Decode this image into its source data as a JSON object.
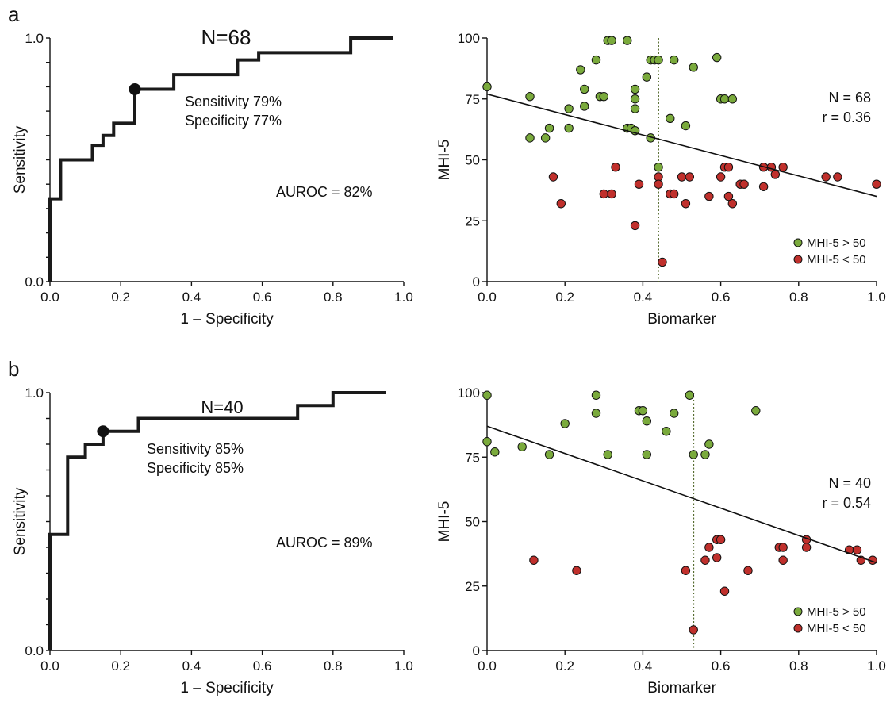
{
  "colors": {
    "green": "#7aaa3c",
    "red": "#c0302c",
    "line": "#111111",
    "cutoff": "#556b2f"
  },
  "panels": {
    "a": {
      "label": "a"
    },
    "b": {
      "label": "b"
    }
  },
  "chart_data": [
    {
      "id": "a-roc",
      "type": "line",
      "title": "N=68",
      "xlabel": "1 – Specificity",
      "ylabel": "Sensitivity",
      "xlim": [
        0,
        1
      ],
      "ylim": [
        0,
        1
      ],
      "xticks": [
        "0.0",
        "0.2",
        "0.4",
        "0.6",
        "0.8",
        "1.0"
      ],
      "yticks": [
        "0.0",
        "1.0"
      ],
      "x": [
        0,
        0,
        0.03,
        0.03,
        0.12,
        0.12,
        0.15,
        0.15,
        0.18,
        0.18,
        0.24,
        0.24,
        0.35,
        0.35,
        0.53,
        0.53,
        0.59,
        0.59,
        0.85,
        0.85,
        0.97
      ],
      "y": [
        0,
        0.34,
        0.34,
        0.5,
        0.5,
        0.56,
        0.56,
        0.6,
        0.6,
        0.65,
        0.65,
        0.79,
        0.79,
        0.85,
        0.85,
        0.91,
        0.91,
        0.94,
        0.94,
        1.0,
        1.0
      ],
      "operating_point": {
        "x": 0.24,
        "y": 0.79
      },
      "annotations": {
        "sensitivity": "Sensitivity 79%",
        "specificity": "Specificity 77%",
        "auroc": "AUROC = 82%"
      }
    },
    {
      "id": "a-scatter",
      "type": "scatter",
      "xlabel": "Biomarker",
      "ylabel": "MHI-5",
      "xlim": [
        0,
        1
      ],
      "ylim": [
        0,
        100
      ],
      "xticks": [
        "0.0",
        "0.2",
        "0.4",
        "0.6",
        "0.8",
        "1.0"
      ],
      "yticks": [
        "0",
        "25",
        "50",
        "75",
        "100"
      ],
      "annotations": {
        "n": "N = 68",
        "r": "r = 0.36"
      },
      "cutoff_x": 0.44,
      "regression": {
        "x": [
          0,
          1
        ],
        "y": [
          77,
          35
        ]
      },
      "series": [
        {
          "name": "MHI-5 > 50",
          "color": "#7aaa3c",
          "points": [
            [
              0.0,
              80
            ],
            [
              0.11,
              76
            ],
            [
              0.11,
              59
            ],
            [
              0.15,
              59
            ],
            [
              0.16,
              63
            ],
            [
              0.21,
              71
            ],
            [
              0.21,
              63
            ],
            [
              0.24,
              87
            ],
            [
              0.25,
              79
            ],
            [
              0.25,
              72
            ],
            [
              0.28,
              91
            ],
            [
              0.29,
              76
            ],
            [
              0.3,
              76
            ],
            [
              0.31,
              99
            ],
            [
              0.32,
              99
            ],
            [
              0.36,
              99
            ],
            [
              0.36,
              63
            ],
            [
              0.37,
              63
            ],
            [
              0.38,
              79
            ],
            [
              0.38,
              75
            ],
            [
              0.38,
              71
            ],
            [
              0.38,
              62
            ],
            [
              0.41,
              84
            ],
            [
              0.42,
              91
            ],
            [
              0.42,
              59
            ],
            [
              0.43,
              91
            ],
            [
              0.44,
              91
            ],
            [
              0.44,
              47
            ],
            [
              0.47,
              67
            ],
            [
              0.48,
              91
            ],
            [
              0.51,
              64
            ],
            [
              0.53,
              88
            ],
            [
              0.59,
              92
            ],
            [
              0.6,
              75
            ],
            [
              0.61,
              75
            ],
            [
              0.63,
              75
            ]
          ]
        },
        {
          "name": "MHI-5 < 50",
          "color": "#c0302c",
          "points": [
            [
              0.17,
              43
            ],
            [
              0.19,
              32
            ],
            [
              0.3,
              36
            ],
            [
              0.32,
              36
            ],
            [
              0.33,
              47
            ],
            [
              0.38,
              23
            ],
            [
              0.39,
              40
            ],
            [
              0.44,
              43
            ],
            [
              0.44,
              40
            ],
            [
              0.45,
              8
            ],
            [
              0.47,
              36
            ],
            [
              0.48,
              36
            ],
            [
              0.5,
              43
            ],
            [
              0.51,
              32
            ],
            [
              0.52,
              43
            ],
            [
              0.57,
              35
            ],
            [
              0.6,
              43
            ],
            [
              0.61,
              47
            ],
            [
              0.62,
              47
            ],
            [
              0.62,
              35
            ],
            [
              0.63,
              32
            ],
            [
              0.65,
              40
            ],
            [
              0.66,
              40
            ],
            [
              0.71,
              39
            ],
            [
              0.71,
              47
            ],
            [
              0.73,
              47
            ],
            [
              0.74,
              44
            ],
            [
              0.76,
              47
            ],
            [
              0.87,
              43
            ],
            [
              0.9,
              43
            ],
            [
              1.0,
              40
            ]
          ]
        }
      ]
    },
    {
      "id": "b-roc",
      "type": "line",
      "title": "N=40",
      "xlabel": "1 – Specificity",
      "ylabel": "Sensitivity",
      "xlim": [
        0,
        1
      ],
      "ylim": [
        0,
        1
      ],
      "xticks": [
        "0.0",
        "0.2",
        "0.4",
        "0.6",
        "0.8",
        "1.0"
      ],
      "yticks": [
        "0.0",
        "1.0"
      ],
      "x": [
        0,
        0,
        0.05,
        0.05,
        0.1,
        0.1,
        0.15,
        0.15,
        0.25,
        0.25,
        0.7,
        0.7,
        0.8,
        0.8,
        0.95
      ],
      "y": [
        0,
        0.45,
        0.45,
        0.75,
        0.75,
        0.8,
        0.8,
        0.85,
        0.85,
        0.9,
        0.9,
        0.95,
        0.95,
        1.0,
        1.0
      ],
      "operating_point": {
        "x": 0.15,
        "y": 0.85
      },
      "annotations": {
        "sensitivity": "Sensitivity 85%",
        "specificity": "Specificity 85%",
        "auroc": "AUROC = 89%"
      }
    },
    {
      "id": "b-scatter",
      "type": "scatter",
      "xlabel": "Biomarker",
      "ylabel": "MHI-5",
      "xlim": [
        0,
        1
      ],
      "ylim": [
        0,
        100
      ],
      "xticks": [
        "0.0",
        "0.2",
        "0.4",
        "0.6",
        "0.8",
        "1.0"
      ],
      "yticks": [
        "0",
        "25",
        "50",
        "75",
        "100"
      ],
      "annotations": {
        "n": "N = 40",
        "r": "r = 0.54"
      },
      "cutoff_x": 0.53,
      "regression": {
        "x": [
          0,
          1
        ],
        "y": [
          87,
          34
        ]
      },
      "series": [
        {
          "name": "MHI-5 > 50",
          "color": "#7aaa3c",
          "points": [
            [
              0.0,
              99
            ],
            [
              0.0,
              81
            ],
            [
              0.02,
              77
            ],
            [
              0.09,
              79
            ],
            [
              0.16,
              76
            ],
            [
              0.2,
              88
            ],
            [
              0.28,
              99
            ],
            [
              0.28,
              92
            ],
            [
              0.31,
              76
            ],
            [
              0.39,
              93
            ],
            [
              0.4,
              93
            ],
            [
              0.41,
              89
            ],
            [
              0.41,
              76
            ],
            [
              0.46,
              85
            ],
            [
              0.48,
              92
            ],
            [
              0.52,
              99
            ],
            [
              0.53,
              76
            ],
            [
              0.56,
              76
            ],
            [
              0.57,
              80
            ],
            [
              0.69,
              93
            ]
          ]
        },
        {
          "name": "MHI-5 < 50",
          "color": "#c0302c",
          "points": [
            [
              0.12,
              35
            ],
            [
              0.23,
              31
            ],
            [
              0.51,
              31
            ],
            [
              0.53,
              8
            ],
            [
              0.56,
              35
            ],
            [
              0.57,
              40
            ],
            [
              0.59,
              43
            ],
            [
              0.59,
              36
            ],
            [
              0.6,
              43
            ],
            [
              0.61,
              23
            ],
            [
              0.67,
              31
            ],
            [
              0.75,
              40
            ],
            [
              0.76,
              35
            ],
            [
              0.76,
              40
            ],
            [
              0.82,
              43
            ],
            [
              0.82,
              40
            ],
            [
              0.93,
              39
            ],
            [
              0.95,
              39
            ],
            [
              0.96,
              35
            ],
            [
              0.99,
              35
            ]
          ]
        }
      ]
    }
  ]
}
